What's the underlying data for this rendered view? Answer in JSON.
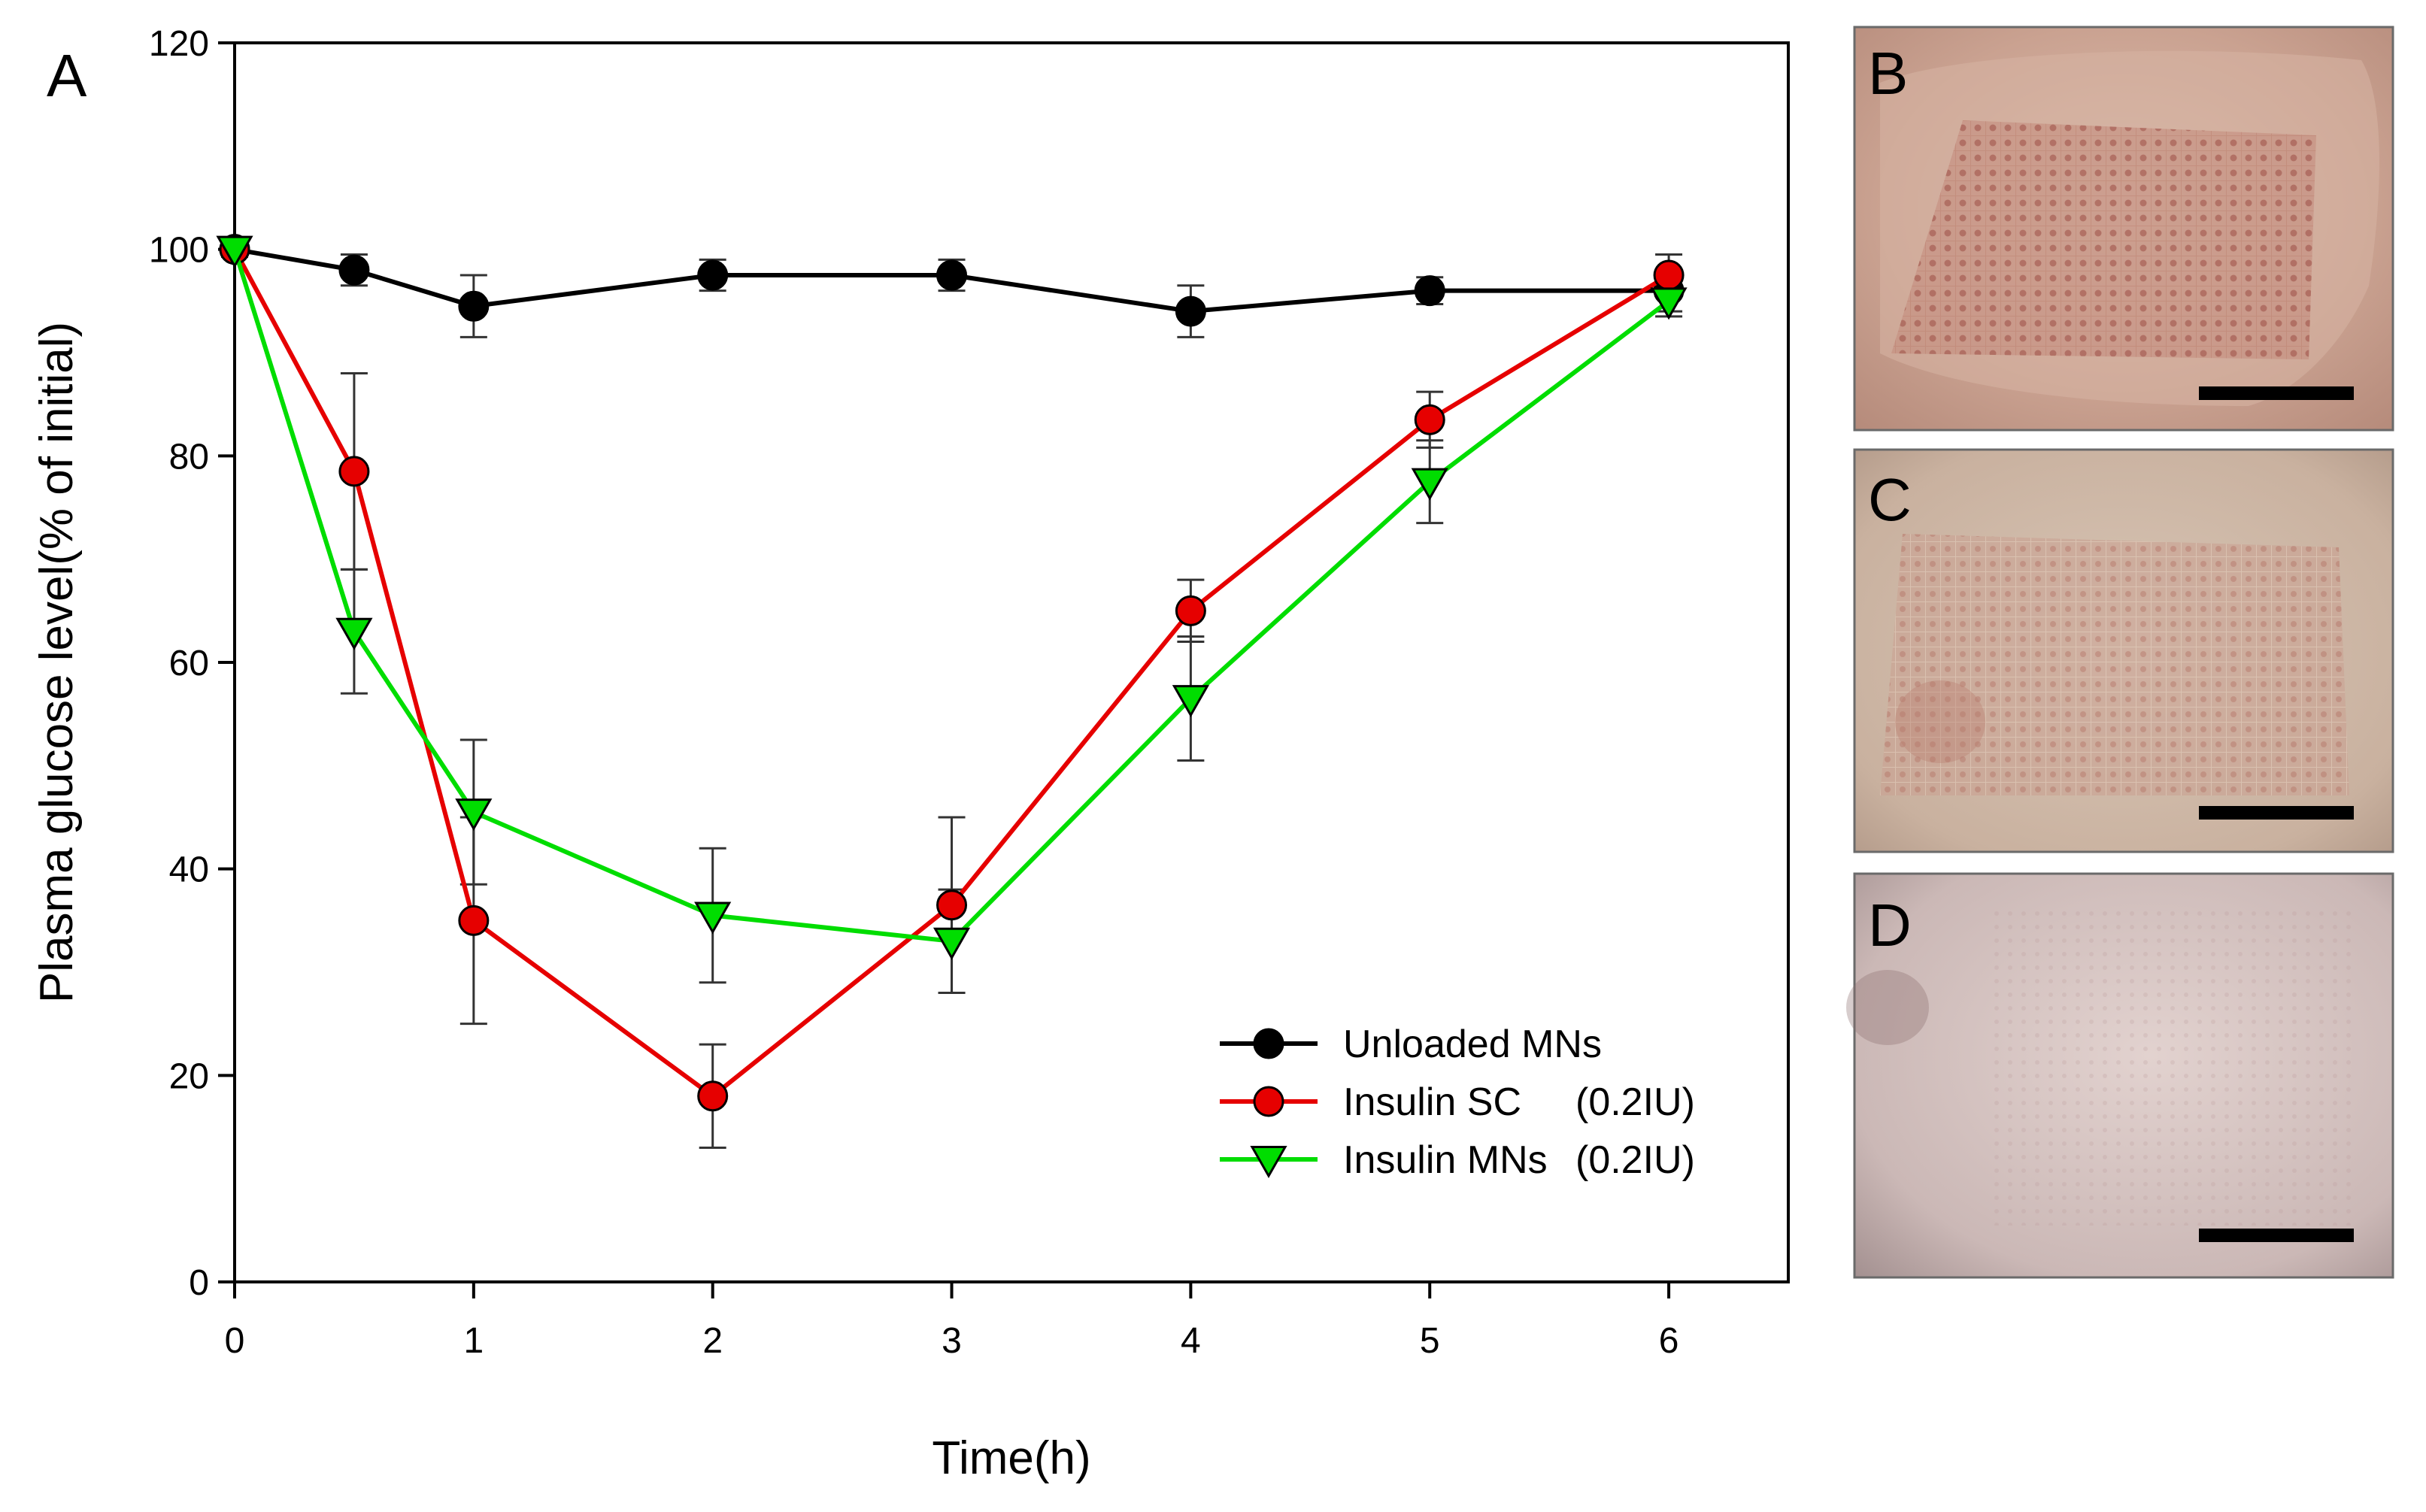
{
  "chart_data": {
    "type": "line",
    "panel_label": "A",
    "xlabel": "Time(h)",
    "ylabel": "Plasma glucose level(% of initial)",
    "xlim": [
      0,
      6.5
    ],
    "ylim": [
      0,
      120
    ],
    "xticks": [
      0,
      1,
      2,
      3,
      4,
      5,
      6
    ],
    "yticks": [
      0,
      20,
      40,
      60,
      80,
      100,
      120
    ],
    "x": [
      0,
      0.5,
      1,
      2,
      3,
      4,
      5,
      6
    ],
    "series": [
      {
        "name": "Unloaded MNs",
        "dose": "",
        "color": "#000000",
        "marker": "circle",
        "values": [
          100,
          98,
          94.5,
          97.5,
          97.5,
          94,
          96,
          96
        ],
        "errors": [
          0.7,
          1.5,
          3,
          1.5,
          1.5,
          2.5,
          1.3,
          2
        ]
      },
      {
        "name": "Insulin SC",
        "dose": "(0.2IU)",
        "color": "#e60000",
        "marker": "circle",
        "values": [
          100,
          78.5,
          35,
          18,
          36.5,
          65,
          83.5,
          97.5
        ],
        "errors": [
          0.7,
          9.5,
          10,
          5,
          8.5,
          3,
          2.7,
          2
        ]
      },
      {
        "name": "Insulin MNs",
        "dose": "(0.2IU)",
        "color": "#00dd00",
        "marker": "triangle-down",
        "values": [
          100,
          63,
          45.5,
          35.5,
          33,
          56.5,
          77.5,
          95
        ],
        "errors": [
          0.7,
          6,
          7,
          6.5,
          5,
          6,
          4,
          1.5
        ]
      }
    ]
  },
  "photo_panels": [
    {
      "label": "B"
    },
    {
      "label": "C"
    },
    {
      "label": "D"
    }
  ]
}
